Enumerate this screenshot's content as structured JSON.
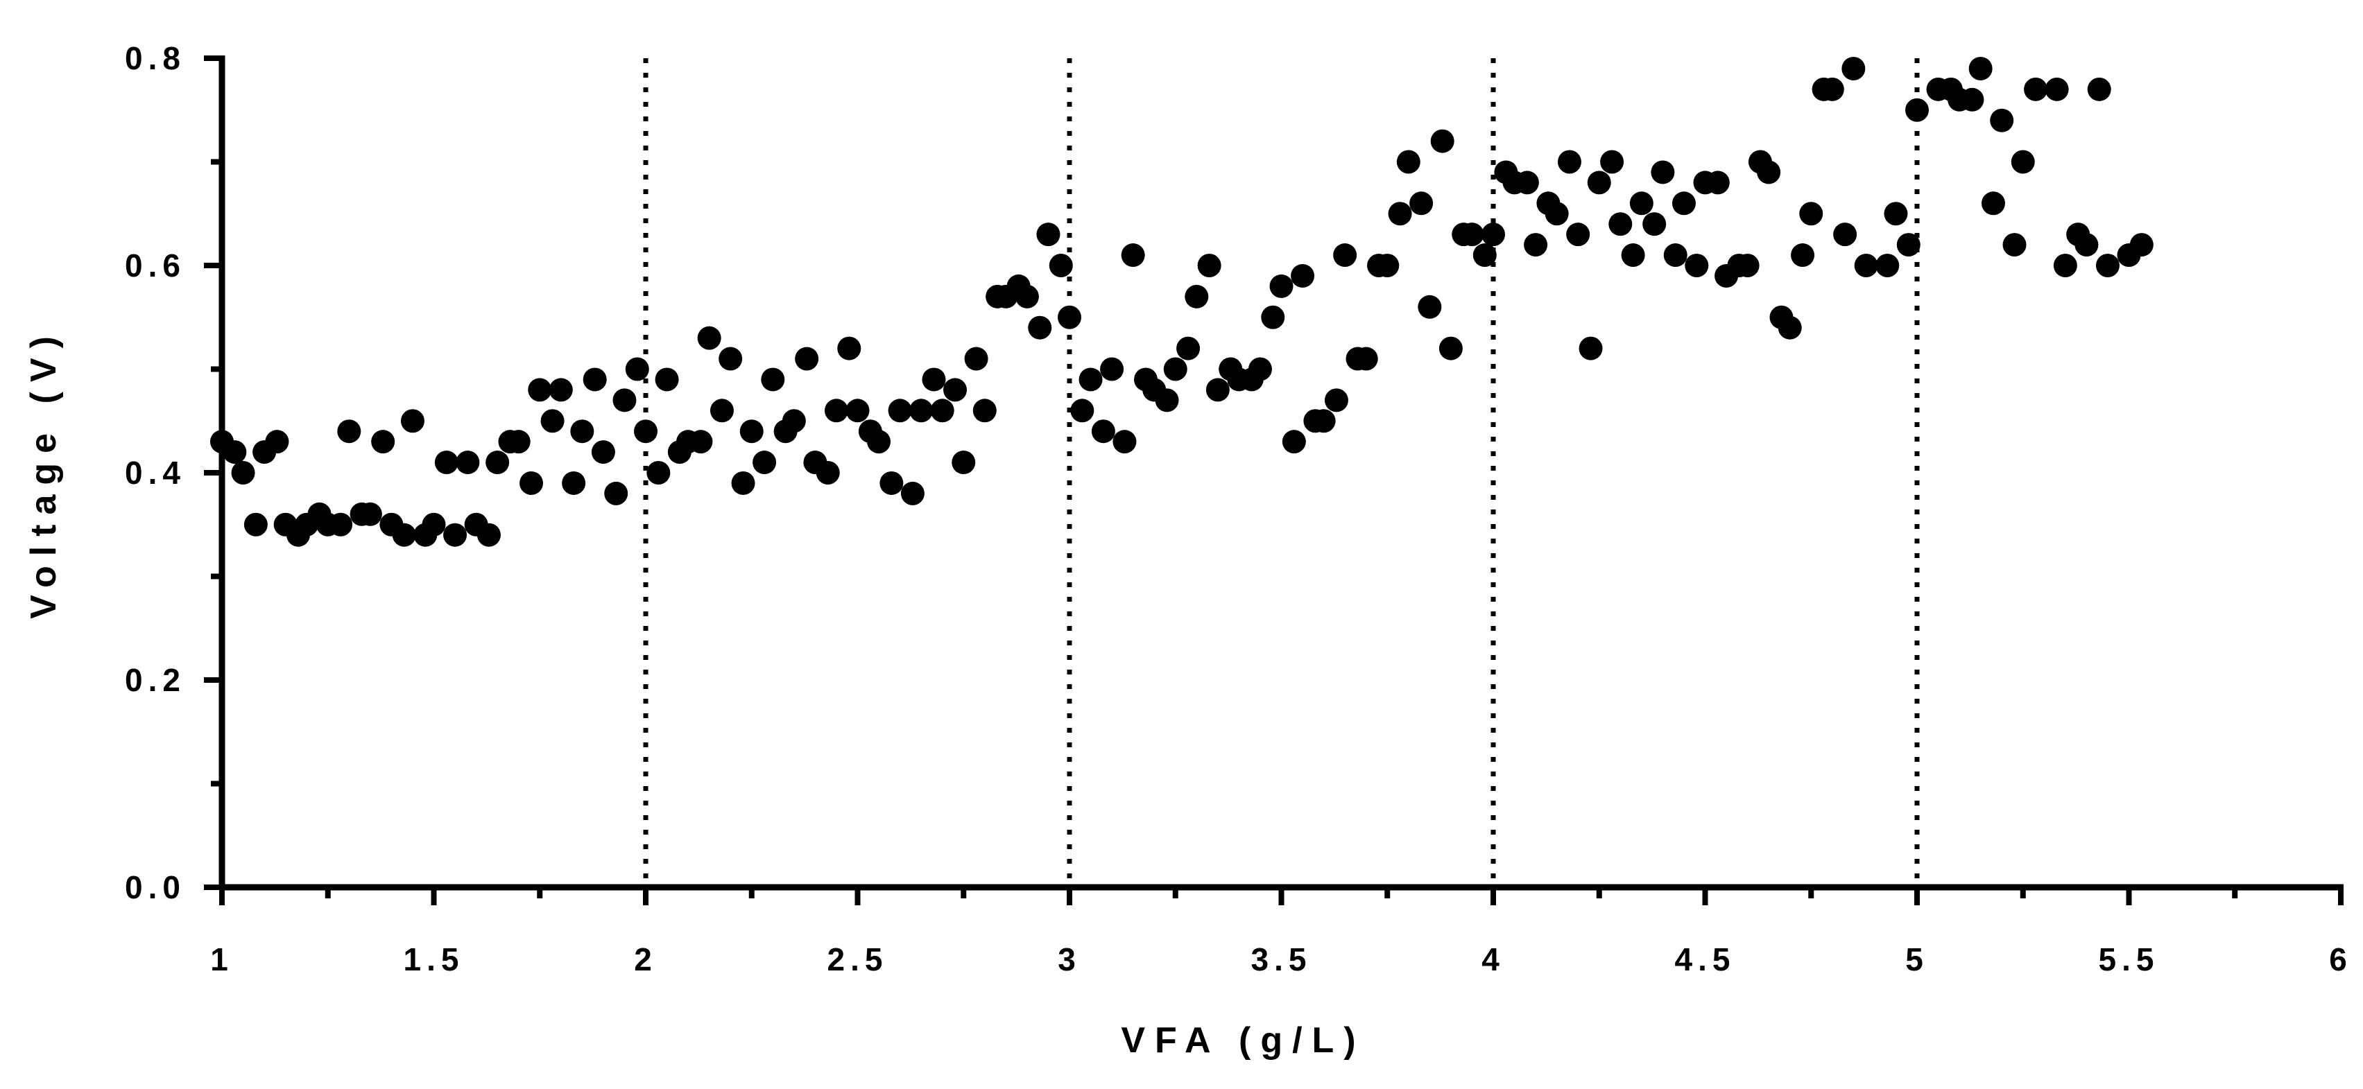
{
  "chart_data": {
    "type": "scatter",
    "xlabel": "VFA (g/L)",
    "ylabel": "Voltage (V)",
    "xlim": [
      1,
      6
    ],
    "ylim": [
      0,
      0.8
    ],
    "x_ticks": [
      1,
      1.5,
      2,
      2.5,
      3,
      3.5,
      4,
      4.5,
      5,
      5.5,
      6
    ],
    "x_tick_labels": [
      "1",
      "1.5",
      "2",
      "2.5",
      "3",
      "3.5",
      "4",
      "4.5",
      "5",
      "5.5",
      "6"
    ],
    "y_ticks": [
      0,
      0.2,
      0.4,
      0.6,
      0.8
    ],
    "y_tick_labels": [
      "0.0",
      "0.2",
      "0.4",
      "0.6",
      "0.8"
    ],
    "vertical_reference_lines": [
      2,
      3,
      4,
      5
    ],
    "grid": false,
    "marker_color": "#000000",
    "points": [
      [
        1.0,
        0.43
      ],
      [
        1.03,
        0.42
      ],
      [
        1.05,
        0.4
      ],
      [
        1.08,
        0.35
      ],
      [
        1.1,
        0.42
      ],
      [
        1.13,
        0.43
      ],
      [
        1.15,
        0.35
      ],
      [
        1.18,
        0.34
      ],
      [
        1.2,
        0.35
      ],
      [
        1.23,
        0.36
      ],
      [
        1.25,
        0.35
      ],
      [
        1.28,
        0.35
      ],
      [
        1.3,
        0.44
      ],
      [
        1.33,
        0.36
      ],
      [
        1.35,
        0.36
      ],
      [
        1.38,
        0.43
      ],
      [
        1.4,
        0.35
      ],
      [
        1.43,
        0.34
      ],
      [
        1.45,
        0.45
      ],
      [
        1.48,
        0.34
      ],
      [
        1.5,
        0.35
      ],
      [
        1.53,
        0.41
      ],
      [
        1.55,
        0.34
      ],
      [
        1.58,
        0.41
      ],
      [
        1.6,
        0.35
      ],
      [
        1.63,
        0.34
      ],
      [
        1.65,
        0.41
      ],
      [
        1.68,
        0.43
      ],
      [
        1.7,
        0.43
      ],
      [
        1.73,
        0.39
      ],
      [
        1.75,
        0.48
      ],
      [
        1.78,
        0.45
      ],
      [
        1.8,
        0.48
      ],
      [
        1.83,
        0.39
      ],
      [
        1.85,
        0.44
      ],
      [
        1.88,
        0.49
      ],
      [
        1.9,
        0.42
      ],
      [
        1.93,
        0.38
      ],
      [
        1.95,
        0.47
      ],
      [
        1.98,
        0.5
      ],
      [
        2.0,
        0.44
      ],
      [
        2.03,
        0.4
      ],
      [
        2.05,
        0.49
      ],
      [
        2.08,
        0.42
      ],
      [
        2.1,
        0.43
      ],
      [
        2.13,
        0.43
      ],
      [
        2.15,
        0.53
      ],
      [
        2.18,
        0.46
      ],
      [
        2.2,
        0.51
      ],
      [
        2.23,
        0.39
      ],
      [
        2.25,
        0.44
      ],
      [
        2.28,
        0.41
      ],
      [
        2.3,
        0.49
      ],
      [
        2.33,
        0.44
      ],
      [
        2.35,
        0.45
      ],
      [
        2.38,
        0.51
      ],
      [
        2.4,
        0.41
      ],
      [
        2.43,
        0.4
      ],
      [
        2.45,
        0.46
      ],
      [
        2.48,
        0.52
      ],
      [
        2.5,
        0.46
      ],
      [
        2.53,
        0.44
      ],
      [
        2.55,
        0.43
      ],
      [
        2.58,
        0.39
      ],
      [
        2.6,
        0.46
      ],
      [
        2.63,
        0.38
      ],
      [
        2.65,
        0.46
      ],
      [
        2.68,
        0.49
      ],
      [
        2.7,
        0.46
      ],
      [
        2.73,
        0.48
      ],
      [
        2.75,
        0.41
      ],
      [
        2.78,
        0.51
      ],
      [
        2.8,
        0.46
      ],
      [
        2.83,
        0.57
      ],
      [
        2.85,
        0.57
      ],
      [
        2.88,
        0.58
      ],
      [
        2.9,
        0.57
      ],
      [
        2.93,
        0.54
      ],
      [
        2.95,
        0.63
      ],
      [
        2.98,
        0.6
      ],
      [
        3.0,
        0.55
      ],
      [
        3.03,
        0.46
      ],
      [
        3.05,
        0.49
      ],
      [
        3.08,
        0.44
      ],
      [
        3.1,
        0.5
      ],
      [
        3.13,
        0.43
      ],
      [
        3.15,
        0.61
      ],
      [
        3.18,
        0.49
      ],
      [
        3.2,
        0.48
      ],
      [
        3.23,
        0.47
      ],
      [
        3.25,
        0.5
      ],
      [
        3.28,
        0.52
      ],
      [
        3.3,
        0.57
      ],
      [
        3.33,
        0.6
      ],
      [
        3.35,
        0.48
      ],
      [
        3.38,
        0.5
      ],
      [
        3.4,
        0.49
      ],
      [
        3.43,
        0.49
      ],
      [
        3.45,
        0.5
      ],
      [
        3.48,
        0.55
      ],
      [
        3.5,
        0.58
      ],
      [
        3.53,
        0.43
      ],
      [
        3.55,
        0.59
      ],
      [
        3.58,
        0.45
      ],
      [
        3.6,
        0.45
      ],
      [
        3.63,
        0.47
      ],
      [
        3.65,
        0.61
      ],
      [
        3.68,
        0.51
      ],
      [
        3.7,
        0.51
      ],
      [
        3.73,
        0.6
      ],
      [
        3.75,
        0.6
      ],
      [
        3.78,
        0.65
      ],
      [
        3.8,
        0.7
      ],
      [
        3.83,
        0.66
      ],
      [
        3.85,
        0.56
      ],
      [
        3.88,
        0.72
      ],
      [
        3.9,
        0.52
      ],
      [
        3.93,
        0.63
      ],
      [
        3.95,
        0.63
      ],
      [
        3.98,
        0.61
      ],
      [
        4.0,
        0.63
      ],
      [
        4.03,
        0.69
      ],
      [
        4.05,
        0.68
      ],
      [
        4.08,
        0.68
      ],
      [
        4.1,
        0.62
      ],
      [
        4.13,
        0.66
      ],
      [
        4.15,
        0.65
      ],
      [
        4.18,
        0.7
      ],
      [
        4.2,
        0.63
      ],
      [
        4.23,
        0.52
      ],
      [
        4.25,
        0.68
      ],
      [
        4.28,
        0.7
      ],
      [
        4.3,
        0.64
      ],
      [
        4.33,
        0.61
      ],
      [
        4.35,
        0.66
      ],
      [
        4.38,
        0.64
      ],
      [
        4.4,
        0.69
      ],
      [
        4.43,
        0.61
      ],
      [
        4.45,
        0.66
      ],
      [
        4.48,
        0.6
      ],
      [
        4.5,
        0.68
      ],
      [
        4.53,
        0.68
      ],
      [
        4.55,
        0.59
      ],
      [
        4.58,
        0.6
      ],
      [
        4.6,
        0.6
      ],
      [
        4.63,
        0.7
      ],
      [
        4.65,
        0.69
      ],
      [
        4.68,
        0.55
      ],
      [
        4.7,
        0.54
      ],
      [
        4.73,
        0.61
      ],
      [
        4.75,
        0.65
      ],
      [
        4.78,
        0.77
      ],
      [
        4.8,
        0.77
      ],
      [
        4.83,
        0.63
      ],
      [
        4.85,
        0.79
      ],
      [
        4.88,
        0.6
      ],
      [
        4.93,
        0.6
      ],
      [
        4.95,
        0.65
      ],
      [
        4.98,
        0.62
      ],
      [
        5.0,
        0.75
      ],
      [
        5.05,
        0.77
      ],
      [
        5.08,
        0.77
      ],
      [
        5.1,
        0.76
      ],
      [
        5.13,
        0.76
      ],
      [
        5.15,
        0.79
      ],
      [
        5.18,
        0.66
      ],
      [
        5.2,
        0.74
      ],
      [
        5.23,
        0.62
      ],
      [
        5.25,
        0.7
      ],
      [
        5.28,
        0.77
      ],
      [
        5.33,
        0.77
      ],
      [
        5.35,
        0.6
      ],
      [
        5.38,
        0.63
      ],
      [
        5.4,
        0.62
      ],
      [
        5.43,
        0.77
      ],
      [
        5.45,
        0.6
      ],
      [
        5.5,
        0.61
      ],
      [
        5.53,
        0.62
      ]
    ]
  }
}
